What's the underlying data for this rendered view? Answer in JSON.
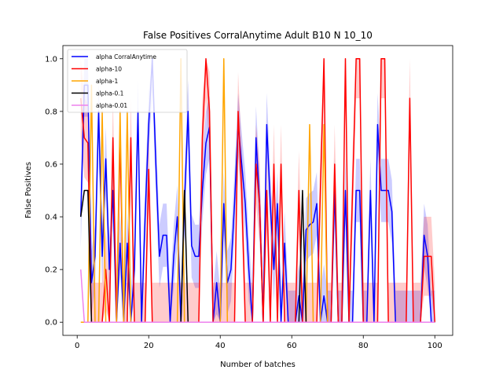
{
  "chart_data": {
    "type": "line",
    "title": "False Positives CorralAnytime Adult B10 N 10_10",
    "xlabel": "Number of batches",
    "ylabel": "False Positives",
    "xlim": [
      -4.0,
      105.0
    ],
    "ylim": [
      -0.05,
      1.05
    ],
    "xticks": [
      0,
      20,
      40,
      60,
      80,
      100
    ],
    "yticks": [
      0.0,
      0.2,
      0.4,
      0.6,
      0.8,
      1.0
    ],
    "xtick_labels": [
      "0",
      "20",
      "40",
      "60",
      "80",
      "100"
    ],
    "ytick_labels": [
      "0.0",
      "0.2",
      "0.4",
      "0.6",
      "0.8",
      "1.0"
    ],
    "legend_position": "top-left",
    "series": [
      {
        "name": "alpha CorralAnytime",
        "color": "#0000ff",
        "x": [
          1,
          2,
          3,
          4,
          5,
          6,
          7,
          8,
          9,
          10,
          11,
          12,
          13,
          14,
          15,
          16,
          17,
          18,
          19,
          20,
          21,
          22,
          23,
          24,
          25,
          26,
          27,
          28,
          29,
          30,
          31,
          32,
          33,
          34,
          35,
          36,
          37,
          38,
          39,
          40,
          41,
          42,
          43,
          44,
          45,
          46,
          47,
          48,
          49,
          50,
          51,
          52,
          53,
          54,
          55,
          56,
          57,
          58,
          59,
          60,
          61,
          62,
          63,
          64,
          65,
          66,
          67,
          68,
          69,
          70,
          71,
          72,
          73,
          74,
          75,
          76,
          77,
          78,
          79,
          80,
          81,
          82,
          83,
          84,
          85,
          86,
          87,
          88,
          89,
          90,
          91,
          92,
          93,
          94,
          95,
          96,
          97,
          98,
          99,
          100
        ],
        "y": [
          0.4,
          0.9,
          0.9,
          0.15,
          0.25,
          0.8,
          0.25,
          0.62,
          0.2,
          0.5,
          0.0,
          0.3,
          0.0,
          0.3,
          0.0,
          0.2,
          0.8,
          0.0,
          0.4,
          0.75,
          1.0,
          0.6,
          0.25,
          0.33,
          0.33,
          0.0,
          0.25,
          0.4,
          0.0,
          0.45,
          0.8,
          0.29,
          0.25,
          0.25,
          0.5,
          0.68,
          0.74,
          0.0,
          0.15,
          0.0,
          0.45,
          0.15,
          0.2,
          0.45,
          0.75,
          0.6,
          0.45,
          0.2,
          0.0,
          0.7,
          0.45,
          0.0,
          0.75,
          0.45,
          0.2,
          0.45,
          0.0,
          0.3,
          0.0,
          0.0,
          0.0,
          0.1,
          0.0,
          0.35,
          0.37,
          0.38,
          0.45,
          0.0,
          0.1,
          0.0,
          0.0,
          0.5,
          0.0,
          0.0,
          0.5,
          0.0,
          0.0,
          0.5,
          0.5,
          0.0,
          0.0,
          0.5,
          0.0,
          0.75,
          0.5,
          0.5,
          0.5,
          0.42,
          0.0,
          0.0,
          0.0,
          0.0,
          0.0,
          0.0,
          0.0,
          0.0,
          0.33,
          0.25,
          0.0,
          0.0
        ],
        "band": 0.12
      },
      {
        "name": "alpha-10",
        "color": "#ff0000",
        "x": [
          1,
          2,
          3,
          4,
          5,
          6,
          7,
          8,
          9,
          10,
          11,
          12,
          13,
          14,
          15,
          16,
          17,
          18,
          19,
          20,
          21,
          22,
          23,
          24,
          25,
          26,
          27,
          28,
          29,
          30,
          31,
          32,
          33,
          34,
          35,
          36,
          37,
          38,
          39,
          40,
          41,
          42,
          43,
          44,
          45,
          46,
          47,
          48,
          49,
          50,
          51,
          52,
          53,
          54,
          55,
          56,
          57,
          58,
          59,
          60,
          61,
          62,
          63,
          64,
          65,
          66,
          67,
          68,
          69,
          70,
          71,
          72,
          73,
          74,
          75,
          76,
          77,
          78,
          79,
          80,
          81,
          82,
          83,
          84,
          85,
          86,
          87,
          88,
          89,
          90,
          91,
          92,
          93,
          94,
          95,
          96,
          97,
          98,
          99,
          100
        ],
        "y": [
          0.85,
          0.7,
          0.68,
          0.0,
          0.0,
          0.0,
          0.0,
          0.2,
          0.0,
          0.7,
          0.0,
          0.7,
          0.0,
          0.0,
          0.7,
          0.0,
          0.0,
          0.0,
          0.0,
          0.58,
          0.0,
          0.0,
          0.0,
          0.0,
          0.0,
          0.0,
          0.0,
          0.0,
          0.0,
          0.0,
          0.0,
          0.0,
          0.0,
          0.0,
          0.7,
          1.0,
          0.8,
          0.0,
          0.0,
          0.0,
          0.0,
          0.0,
          0.0,
          0.0,
          0.8,
          0.5,
          0.0,
          0.0,
          0.0,
          0.6,
          0.45,
          0.0,
          0.5,
          0.0,
          0.6,
          0.0,
          0.6,
          0.0,
          0.0,
          0.0,
          0.0,
          0.5,
          0.0,
          0.0,
          0.0,
          0.0,
          0.0,
          0.5,
          1.0,
          0.0,
          0.0,
          0.6,
          0.0,
          0.0,
          1.0,
          0.0,
          0.5,
          1.0,
          1.0,
          0.0,
          0.0,
          0.0,
          0.0,
          0.0,
          1.0,
          1.0,
          0.0,
          0.0,
          0.0,
          0.0,
          0.0,
          0.0,
          0.85,
          0.0,
          0.0,
          0.0,
          0.25,
          0.25,
          0.25,
          0.0
        ],
        "band": 0.15
      },
      {
        "name": "alpha-1",
        "color": "#ffa500",
        "x": [
          1,
          2,
          3,
          4,
          5,
          6,
          7,
          8,
          9,
          10,
          11,
          12,
          13,
          14,
          15,
          16,
          17,
          18,
          19,
          20,
          21,
          22,
          23,
          24,
          25,
          26,
          27,
          28,
          29,
          30,
          31,
          32,
          33,
          34,
          35,
          36,
          37,
          38,
          39,
          40,
          41,
          42,
          43,
          44,
          45,
          46,
          47,
          48,
          49,
          50,
          51,
          52,
          53,
          54,
          55,
          56,
          57,
          58,
          59,
          60,
          61,
          62,
          63,
          64,
          65,
          66,
          67,
          68,
          69,
          70,
          71,
          72,
          73,
          74,
          75,
          76,
          77,
          78,
          79,
          80,
          81,
          82,
          83,
          84,
          85,
          86,
          87,
          88,
          89,
          90,
          91,
          92,
          93,
          94,
          95,
          96,
          97,
          98,
          99,
          100
        ],
        "y": [
          0.0,
          0.0,
          0.0,
          0.9,
          0.0,
          0.0,
          0.8,
          0.0,
          0.0,
          0.0,
          0.0,
          0.8,
          0.0,
          0.8,
          0.0,
          0.0,
          0.0,
          0.0,
          0.0,
          0.0,
          0.0,
          0.0,
          0.0,
          0.0,
          0.0,
          0.0,
          0.0,
          0.0,
          1.0,
          0.0,
          0.0,
          0.0,
          0.0,
          0.0,
          0.0,
          0.0,
          0.0,
          0.0,
          0.0,
          0.0,
          1.0,
          0.0,
          0.0,
          0.0,
          0.0,
          0.0,
          0.0,
          0.0,
          0.0,
          0.0,
          0.0,
          0.0,
          0.0,
          0.0,
          0.0,
          0.0,
          0.0,
          0.0,
          0.0,
          0.0,
          0.0,
          0.0,
          0.0,
          0.0,
          0.75,
          0.0,
          0.0,
          0.0,
          0.75,
          0.0,
          0.0,
          0.0,
          0.0,
          0.0,
          0.0,
          0.0,
          0.0,
          0.0,
          0.0,
          0.0,
          0.0,
          0.0,
          0.0,
          0.0,
          0.0,
          0.0,
          0.0,
          0.0,
          0.0,
          0.0,
          0.0,
          0.0,
          0.0,
          0.0,
          0.0,
          0.0,
          0.0,
          0.0,
          0.0,
          0.0
        ],
        "band": 0.0
      },
      {
        "name": "alpha-0.1",
        "color": "#000000",
        "x": [
          1,
          2,
          3,
          4,
          5,
          6,
          7,
          8,
          9,
          10,
          11,
          12,
          13,
          14,
          15,
          16,
          17,
          18,
          19,
          20,
          21,
          22,
          23,
          24,
          25,
          26,
          27,
          28,
          29,
          30,
          31,
          32,
          33,
          34,
          35,
          36,
          37,
          38,
          39,
          40,
          41,
          42,
          43,
          44,
          45,
          46,
          47,
          48,
          49,
          50,
          51,
          52,
          53,
          54,
          55,
          56,
          57,
          58,
          59,
          60,
          61,
          62,
          63,
          64,
          65,
          66,
          67,
          68,
          69,
          70,
          71,
          72,
          73,
          74,
          75,
          76,
          77,
          78,
          79,
          80,
          81,
          82,
          83,
          84,
          85,
          86,
          87,
          88,
          89,
          90,
          91,
          92,
          93,
          94,
          95,
          96,
          97,
          98,
          99,
          100
        ],
        "y": [
          0.4,
          0.5,
          0.5,
          0.0,
          0.0,
          0.0,
          0.0,
          0.0,
          0.0,
          0.0,
          0.0,
          0.0,
          0.0,
          0.0,
          0.0,
          0.0,
          0.0,
          0.0,
          0.0,
          0.0,
          0.0,
          0.0,
          0.0,
          0.0,
          0.0,
          0.0,
          0.0,
          0.0,
          0.0,
          0.5,
          0.0,
          0.0,
          0.0,
          0.0,
          0.0,
          0.0,
          0.0,
          0.0,
          0.0,
          0.0,
          0.0,
          0.0,
          0.0,
          0.0,
          0.0,
          0.0,
          0.0,
          0.0,
          0.0,
          0.0,
          0.0,
          0.0,
          0.0,
          0.0,
          0.0,
          0.0,
          0.0,
          0.0,
          0.0,
          0.0,
          0.0,
          0.0,
          0.5,
          0.0,
          0.0,
          0.0,
          0.0,
          0.0,
          0.0,
          0.0,
          0.0,
          0.0,
          0.0,
          0.0,
          0.0,
          0.0,
          0.0,
          0.0,
          0.0,
          0.0,
          0.0,
          0.0,
          0.0,
          0.0,
          0.0,
          0.0,
          0.0,
          0.0,
          0.0,
          0.0,
          0.0,
          0.0,
          0.0,
          0.0,
          0.0,
          0.0,
          0.0,
          0.0,
          0.0,
          0.0
        ],
        "band": 0.0
      },
      {
        "name": "alpha-0.01",
        "color": "#ee82ee",
        "x": [
          1,
          2,
          3,
          4,
          5,
          6,
          7,
          8,
          9,
          10,
          11,
          12,
          13,
          14,
          15,
          16,
          17,
          18,
          19,
          20,
          21,
          22,
          23,
          24,
          25,
          26,
          27,
          28,
          29,
          30,
          31,
          32,
          33,
          34,
          35,
          36,
          37,
          38,
          39,
          40,
          41,
          42,
          43,
          44,
          45,
          46,
          47,
          48,
          49,
          50,
          51,
          52,
          53,
          54,
          55,
          56,
          57,
          58,
          59,
          60,
          61,
          62,
          63,
          64,
          65,
          66,
          67,
          68,
          69,
          70,
          71,
          72,
          73,
          74,
          75,
          76,
          77,
          78,
          79,
          80,
          81,
          82,
          83,
          84,
          85,
          86,
          87,
          88,
          89,
          90,
          91,
          92,
          93,
          94,
          95,
          96,
          97,
          98,
          99,
          100
        ],
        "y": [
          0.2,
          0.0,
          0.0,
          0.0,
          0.0,
          0.0,
          0.0,
          0.0,
          0.0,
          0.0,
          0.0,
          0.0,
          0.0,
          0.0,
          0.0,
          0.0,
          0.0,
          0.0,
          0.0,
          0.0,
          0.0,
          0.0,
          0.0,
          0.0,
          0.0,
          0.0,
          0.0,
          0.0,
          0.0,
          0.0,
          0.0,
          0.0,
          0.0,
          0.0,
          0.0,
          0.0,
          0.0,
          0.0,
          0.0,
          0.0,
          0.0,
          0.0,
          0.0,
          0.0,
          0.0,
          0.0,
          0.0,
          0.0,
          0.0,
          0.0,
          0.0,
          0.0,
          0.0,
          0.0,
          0.0,
          0.0,
          0.0,
          0.0,
          0.0,
          0.0,
          0.0,
          0.0,
          0.0,
          0.0,
          0.0,
          0.0,
          0.0,
          0.0,
          0.0,
          0.0,
          0.0,
          0.0,
          0.0,
          0.0,
          0.0,
          0.0,
          0.0,
          0.0,
          0.0,
          0.0,
          0.0,
          0.0,
          0.0,
          0.0,
          0.0,
          0.0,
          0.0,
          0.0,
          0.0,
          0.0,
          0.0,
          0.0,
          0.0,
          0.0,
          0.0,
          0.0,
          0.0,
          0.0,
          0.0,
          0.0
        ],
        "band": 0.0
      }
    ]
  }
}
